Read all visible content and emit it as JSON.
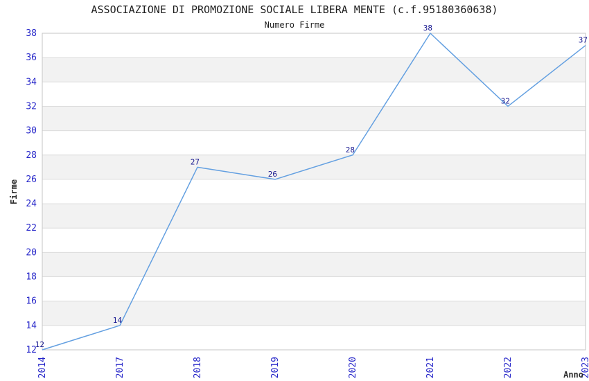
{
  "chart_data": {
    "type": "line",
    "title": "ASSOCIAZIONE DI PROMOZIONE SOCIALE LIBERA MENTE (c.f.95180360638)",
    "subtitle": "Numero Firme",
    "xlabel": "Anno",
    "ylabel": "Firme",
    "categories": [
      "2014",
      "2017",
      "2018",
      "2019",
      "2020",
      "2021",
      "2022",
      "2023"
    ],
    "values": [
      12,
      14,
      27,
      26,
      28,
      38,
      32,
      37
    ],
    "ylim": [
      12,
      38
    ],
    "ytick_step": 2,
    "yticks": [
      12,
      14,
      16,
      18,
      20,
      22,
      24,
      26,
      28,
      30,
      32,
      34,
      36,
      38
    ],
    "grid": true,
    "legend": "none",
    "x_tick_rotation": 90,
    "band_rows": "alternating white / light-gray horizontal bands every 2 units, gray from 14-16 upward",
    "colors": {
      "line": "#64a0e1",
      "tick_label": "#2626c9",
      "data_label": "#16168f",
      "band": "#f2f2f2",
      "grid": "#dcdcdc",
      "spine": "#c6c6c6",
      "text": "#2b2b2b",
      "background": "#ffffff"
    }
  }
}
